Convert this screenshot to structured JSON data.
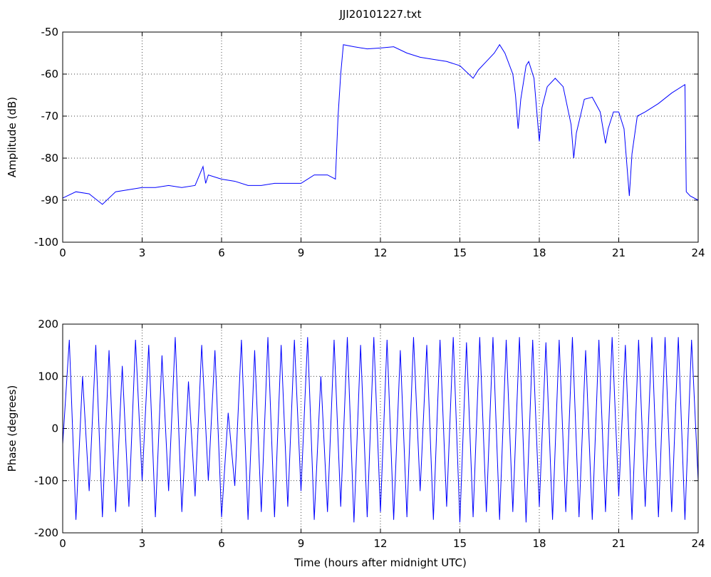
{
  "chart_data": [
    {
      "type": "line",
      "title": "JJI20101227.txt",
      "ylabel": "Amplitude (dB)",
      "x": [
        0,
        0.5,
        1,
        1.5,
        2,
        2.5,
        3,
        3.5,
        4,
        4.5,
        5,
        5.3,
        5.4,
        5.5,
        6,
        6.5,
        7,
        7.5,
        8,
        8.5,
        9,
        9.5,
        10,
        10.3,
        10.4,
        10.5,
        10.6,
        11,
        11.5,
        12,
        12.5,
        13,
        13.5,
        14,
        14.5,
        15,
        15.5,
        15.7,
        16,
        16.3,
        16.5,
        16.7,
        17,
        17.1,
        17.2,
        17.3,
        17.5,
        17.6,
        17.8,
        18,
        18.1,
        18.3,
        18.6,
        18.9,
        19.2,
        19.3,
        19.4,
        19.7,
        20,
        20.3,
        20.5,
        20.6,
        20.8,
        21,
        21.2,
        21.4,
        21.5,
        21.7,
        22,
        22.5,
        23,
        23.5,
        23.55,
        23.7,
        24
      ],
      "series": [
        {
          "color": "#0000ff",
          "values": [
            -89.5,
            -88,
            -88.5,
            -91,
            -88,
            -87.5,
            -87,
            -87,
            -86.5,
            -87,
            -86.5,
            -82,
            -86,
            -84,
            -85,
            -85.5,
            -86.5,
            -86.5,
            -86,
            -86,
            -86,
            -84,
            -84,
            -85,
            -70,
            -60,
            -53,
            -53.5,
            -54,
            -53.8,
            -53.5,
            -55,
            -56,
            -56.5,
            -57,
            -58,
            -61,
            -59,
            -57,
            -55,
            -53,
            -55,
            -60,
            -65,
            -73,
            -66,
            -58,
            -57,
            -61,
            -76,
            -68,
            -63,
            -61,
            -63,
            -72,
            -80,
            -74,
            -66,
            -65.5,
            -69,
            -76.5,
            -73,
            -69,
            -69,
            -73,
            -89,
            -79,
            -70,
            -69,
            -67,
            -64.5,
            -62.5,
            -88,
            -89,
            -90
          ]
        }
      ],
      "xlim": [
        0,
        24
      ],
      "ylim": [
        -100,
        -50
      ],
      "xticks": [
        0,
        3,
        6,
        9,
        12,
        15,
        18,
        21,
        24
      ],
      "yticks": [
        -100,
        -90,
        -80,
        -70,
        -60,
        -50
      ],
      "grid": true
    },
    {
      "type": "line",
      "xlabel": "Time (hours after midnight UTC)",
      "ylabel": "Phase (degrees)",
      "x": [
        0,
        0.25,
        0.5,
        0.75,
        1,
        1.25,
        1.5,
        1.75,
        2,
        2.25,
        2.5,
        2.75,
        3,
        3.25,
        3.5,
        3.75,
        4,
        4.25,
        4.5,
        4.75,
        5,
        5.25,
        5.5,
        5.75,
        6,
        6.25,
        6.5,
        6.75,
        7,
        7.25,
        7.5,
        7.75,
        8,
        8.25,
        8.5,
        8.75,
        9,
        9.25,
        9.5,
        9.75,
        10,
        10.25,
        10.5,
        10.75,
        11,
        11.25,
        11.5,
        11.75,
        12,
        12.25,
        12.5,
        12.75,
        13,
        13.25,
        13.5,
        13.75,
        14,
        14.25,
        14.5,
        14.75,
        15,
        15.25,
        15.5,
        15.75,
        16,
        16.25,
        16.5,
        16.75,
        17,
        17.25,
        17.5,
        17.75,
        18,
        18.25,
        18.5,
        18.75,
        19,
        19.25,
        19.5,
        19.75,
        20,
        20.25,
        20.5,
        20.75,
        21,
        21.25,
        21.5,
        21.75,
        22,
        22.25,
        22.5,
        22.75,
        23,
        23.25,
        23.5,
        23.75,
        24
      ],
      "series": [
        {
          "color": "#0000ff",
          "values": [
            -30,
            170,
            -175,
            100,
            -120,
            160,
            -170,
            150,
            -160,
            120,
            -150,
            170,
            -100,
            160,
            -170,
            140,
            -120,
            175,
            -160,
            90,
            -130,
            160,
            -100,
            150,
            -170,
            30,
            -110,
            170,
            -175,
            150,
            -160,
            175,
            -170,
            160,
            -150,
            170,
            -120,
            175,
            -175,
            100,
            -160,
            170,
            -150,
            175,
            -180,
            160,
            -170,
            175,
            -160,
            170,
            -175,
            150,
            -170,
            175,
            -120,
            160,
            -175,
            170,
            -150,
            175,
            -180,
            165,
            -170,
            175,
            -160,
            175,
            -175,
            170,
            -160,
            175,
            -180,
            170,
            -150,
            165,
            -175,
            170,
            -160,
            175,
            -170,
            150,
            -175,
            170,
            -160,
            175,
            -130,
            160,
            -175,
            170,
            -150,
            175,
            -170,
            175,
            -160,
            175,
            -175,
            170,
            -100
          ]
        }
      ],
      "xlim": [
        0,
        24
      ],
      "ylim": [
        -200,
        200
      ],
      "xticks": [
        0,
        3,
        6,
        9,
        12,
        15,
        18,
        21,
        24
      ],
      "yticks": [
        -200,
        -100,
        0,
        100,
        200
      ],
      "grid": true
    }
  ]
}
